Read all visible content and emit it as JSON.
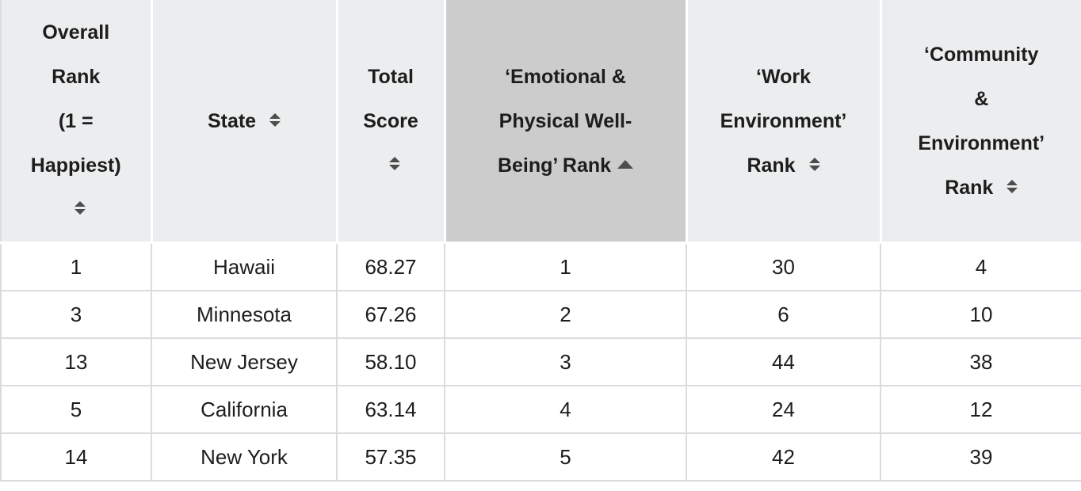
{
  "table": {
    "columns": [
      {
        "label": "Overall Rank (1 = Happiest)",
        "label_lines": [
          "Overall",
          "Rank",
          "(1 =",
          "Happiest)"
        ],
        "sort": "none"
      },
      {
        "label": "State",
        "label_lines": [
          "State"
        ],
        "sort": "none"
      },
      {
        "label": "Total Score",
        "label_lines": [
          "Total",
          "Score"
        ],
        "sort": "none"
      },
      {
        "label": "‘Emotional & Physical Well-Being’ Rank",
        "label_lines": [
          "‘Emotional &",
          "Physical Well-",
          "Being’ Rank"
        ],
        "sort": "asc"
      },
      {
        "label": "‘Work Environment’ Rank",
        "label_lines": [
          "‘Work",
          "Environment’",
          "Rank"
        ],
        "sort": "none"
      },
      {
        "label": "‘Community & Environment’ Rank",
        "label_lines": [
          "‘Community",
          "&",
          "Environment’",
          "Rank"
        ],
        "sort": "none"
      }
    ],
    "rows": [
      [
        "1",
        "Hawaii",
        "68.27",
        "1",
        "30",
        "4"
      ],
      [
        "3",
        "Minnesota",
        "67.26",
        "2",
        "6",
        "10"
      ],
      [
        "13",
        "New Jersey",
        "58.10",
        "3",
        "44",
        "38"
      ],
      [
        "5",
        "California",
        "63.14",
        "4",
        "24",
        "12"
      ],
      [
        "14",
        "New York",
        "57.35",
        "5",
        "42",
        "39"
      ]
    ]
  },
  "colors": {
    "header_bg": "#ecedee",
    "sorted_header_bg": "#cccccc",
    "border": "#d9dddd",
    "header_separator": "#ffffff",
    "text": "#1d1d1d",
    "sort_icon": "#4d4d4d"
  }
}
